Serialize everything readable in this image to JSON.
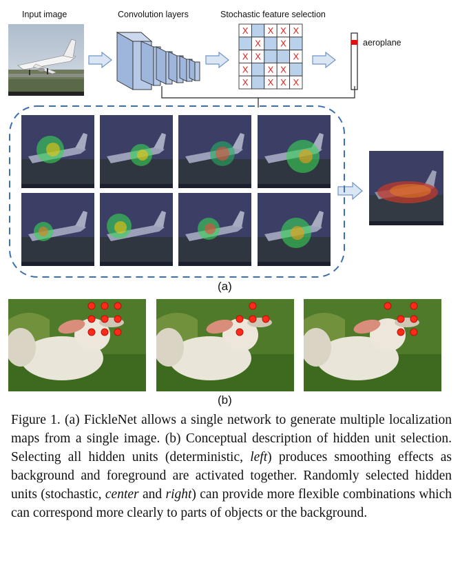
{
  "diagram": {
    "input_label": "Input image",
    "conv_label": "Convolution layers",
    "sfs_label": "Stochastic feature selection",
    "output_label": "aeroplane",
    "grid": [
      [
        "X",
        "",
        "X",
        "X",
        "X"
      ],
      [
        "",
        "X",
        "",
        "X",
        ""
      ],
      [
        "X",
        "X",
        "",
        "",
        "X"
      ],
      [
        "X",
        "",
        "X",
        "X",
        ""
      ],
      [
        "X",
        "",
        "X",
        "X",
        "X"
      ]
    ],
    "sub_a": "(a)",
    "sub_b": "(b)"
  },
  "colors": {
    "dashed_border": "#3a6fb0",
    "grid_blue": "#b9d1ea",
    "arrow_fill": "#dbe6f4",
    "arrow_stroke": "#6f95c6",
    "dot": "#ff2a1a"
  },
  "caption": {
    "p1": "Figure 1.  (a) FickleNet allows a single network to generate multiple localization maps from a single image. (b) Conceptual description of hidden unit selection. Selecting all hidden units (deterministic, ",
    "i1": "left",
    "p2": ") produces smoothing effects as background and foreground are activated together. Randomly selected hidden units (stochastic, ",
    "i2": "center",
    "p3": " and ",
    "i3": "right",
    "p4": ") can provide more flexible combinations which can correspond more clearly to parts of objects or the background."
  }
}
